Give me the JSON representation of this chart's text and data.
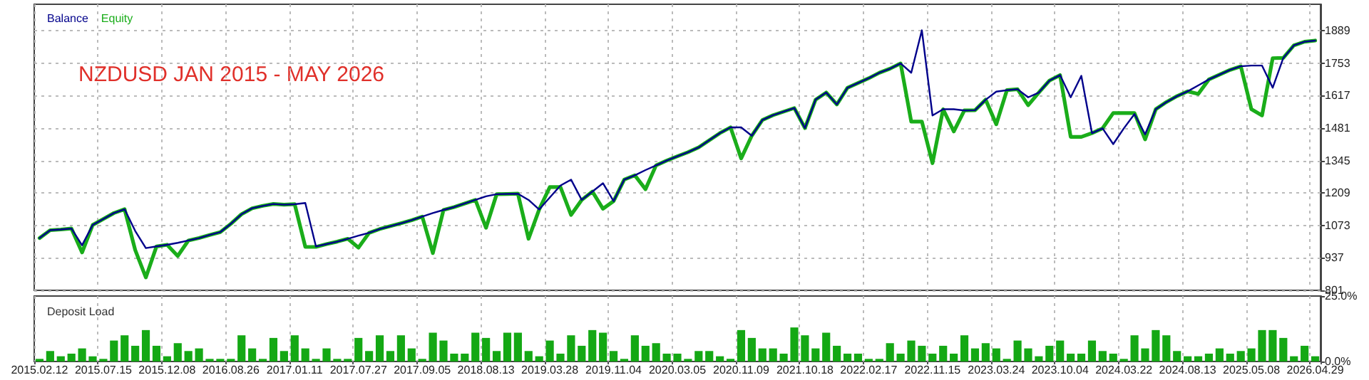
{
  "chart_data": [
    {
      "type": "line",
      "annotations": [
        "NZDUSD JAN 2015 - MAY 2026"
      ],
      "legend": "top left",
      "grid": true,
      "tick_labels": "y",
      "marker": "none",
      "line_style": "solid",
      "categories": [
        "2015.02.12",
        null,
        null,
        null,
        null,
        null,
        "2015.07.15",
        null,
        null,
        null,
        null,
        null,
        "2015.12.08",
        null,
        null,
        null,
        null,
        null,
        "2016.08.26",
        null,
        null,
        null,
        null,
        null,
        "2017.01.11",
        null,
        null,
        null,
        null,
        null,
        "2017.07.27",
        null,
        null,
        null,
        null,
        null,
        "2017.09.05",
        null,
        null,
        null,
        null,
        null,
        "2018.08.13",
        null,
        null,
        null,
        null,
        null,
        "2019.03.28",
        null,
        null,
        null,
        null,
        null,
        "2019.11.04",
        null,
        null,
        null,
        null,
        null,
        "2020.03.05",
        null,
        null,
        null,
        null,
        null,
        "2020.11.09",
        null,
        null,
        null,
        null,
        null,
        "2021.10.18",
        null,
        null,
        null,
        null,
        null,
        "2022.02.17",
        null,
        null,
        null,
        null,
        null,
        "2022.11.15",
        null,
        null,
        null,
        null,
        null,
        "2023.03.24",
        null,
        null,
        null,
        null,
        null,
        "2023.10.04",
        null,
        null,
        null,
        null,
        null,
        "2024.03.22",
        null,
        null,
        null,
        null,
        null,
        "2024.08.13",
        null,
        null,
        null,
        null,
        null,
        "2025.05.08",
        null,
        null,
        null,
        null,
        null,
        "2026.04.29"
      ],
      "ylim": [
        801,
        2000
      ],
      "yticks": [
        801,
        937,
        1073,
        1209,
        1345,
        1481,
        1617,
        1753,
        1889
      ],
      "series": [
        {
          "name": "Balance",
          "color": "#00008b",
          "values": [
            1020,
            1053,
            1056,
            1060,
            990,
            1075,
            1100,
            1125,
            1141,
            1050,
            978,
            985,
            992,
            1000,
            1010,
            1020,
            1033,
            1045,
            1080,
            1120,
            1145,
            1155,
            1163,
            1160,
            1162,
            1167,
            985,
            995,
            1005,
            1017,
            1030,
            1042,
            1058,
            1070,
            1082,
            1095,
            1110,
            1125,
            1138,
            1150,
            1165,
            1180,
            1195,
            1204,
            1205,
            1206,
            1180,
            1140,
            1190,
            1240,
            1265,
            1180,
            1215,
            1250,
            1175,
            1265,
            1283,
            1305,
            1325,
            1345,
            1363,
            1380,
            1400,
            1430,
            1460,
            1484,
            1484,
            1449,
            1515,
            1535,
            1550,
            1565,
            1481,
            1600,
            1630,
            1580,
            1650,
            1670,
            1690,
            1713,
            1730,
            1752,
            1713,
            1891,
            1534,
            1560,
            1560,
            1555,
            1556,
            1600,
            1634,
            1640,
            1644,
            1610,
            1630,
            1680,
            1703,
            1610,
            1700,
            1460,
            1480,
            1414,
            1480,
            1540,
            1455,
            1560,
            1590,
            1615,
            1635,
            1660,
            1685,
            1705,
            1725,
            1740,
            1743,
            1743,
            1650,
            1775,
            1828,
            1843,
            1848
          ]
        },
        {
          "name": "Equity",
          "color": "#1aad1a",
          "values": [
            1020,
            1053,
            1056,
            1060,
            960,
            1075,
            1100,
            1125,
            1141,
            970,
            855,
            985,
            992,
            945,
            1010,
            1020,
            1033,
            1045,
            1080,
            1120,
            1145,
            1155,
            1163,
            1160,
            1162,
            983,
            983,
            995,
            1005,
            1017,
            980,
            1042,
            1058,
            1070,
            1082,
            1095,
            1110,
            957,
            1138,
            1150,
            1165,
            1180,
            1063,
            1204,
            1205,
            1206,
            1017,
            1140,
            1234,
            1234,
            1117,
            1180,
            1215,
            1143,
            1175,
            1265,
            1283,
            1225,
            1325,
            1345,
            1363,
            1380,
            1400,
            1430,
            1460,
            1484,
            1354,
            1449,
            1515,
            1535,
            1550,
            1565,
            1481,
            1600,
            1630,
            1580,
            1650,
            1670,
            1690,
            1713,
            1730,
            1752,
            1508,
            1508,
            1334,
            1560,
            1467,
            1555,
            1556,
            1600,
            1497,
            1640,
            1644,
            1577,
            1630,
            1680,
            1703,
            1444,
            1444,
            1460,
            1480,
            1544,
            1544,
            1544,
            1434,
            1560,
            1590,
            1615,
            1635,
            1624,
            1685,
            1705,
            1725,
            1740,
            1560,
            1534,
            1774,
            1775,
            1828,
            1843,
            1848
          ]
        }
      ]
    },
    {
      "type": "bar",
      "title": "Deposit Load",
      "grid": "x",
      "categories": [
        "2015.02.12",
        null,
        null,
        null,
        null,
        null,
        "2015.07.15",
        null,
        null,
        null,
        null,
        null,
        "2015.12.08",
        null,
        null,
        null,
        null,
        null,
        "2016.08.26",
        null,
        null,
        null,
        null,
        null,
        "2017.01.11",
        null,
        null,
        null,
        null,
        null,
        "2017.07.27",
        null,
        null,
        null,
        null,
        null,
        "2017.09.05",
        null,
        null,
        null,
        null,
        null,
        "2018.08.13",
        null,
        null,
        null,
        null,
        null,
        "2019.03.28",
        null,
        null,
        null,
        null,
        null,
        "2019.11.04",
        null,
        null,
        null,
        null,
        null,
        "2020.03.05",
        null,
        null,
        null,
        null,
        null,
        "2020.11.09",
        null,
        null,
        null,
        null,
        null,
        "2021.10.18",
        null,
        null,
        null,
        null,
        null,
        "2022.02.17",
        null,
        null,
        null,
        null,
        null,
        "2022.11.15",
        null,
        null,
        null,
        null,
        null,
        "2023.03.24",
        null,
        null,
        null,
        null,
        null,
        "2023.10.04",
        null,
        null,
        null,
        null,
        null,
        "2024.03.22",
        null,
        null,
        null,
        null,
        null,
        "2024.08.13",
        null,
        null,
        null,
        null,
        null,
        "2025.05.08",
        null,
        null,
        null,
        null,
        null,
        "2026.04.29"
      ],
      "ylim": [
        0,
        25
      ],
      "yticks": [
        {
          "value": 0,
          "label": "0.0%"
        },
        {
          "value": 25,
          "label": "25.0%"
        }
      ],
      "color": "#14a814",
      "values": [
        1,
        4,
        2,
        3,
        5,
        2,
        1,
        8,
        10,
        6,
        12,
        6,
        2,
        7,
        4,
        5,
        1,
        1,
        1,
        10,
        5,
        1,
        9,
        4,
        10,
        5,
        1,
        5,
        1,
        1,
        9,
        4,
        10,
        4,
        10,
        5,
        1,
        11,
        8,
        3,
        3,
        11,
        9,
        4,
        11,
        11,
        4,
        2,
        8,
        3,
        10,
        6,
        12,
        11,
        4,
        1,
        10,
        6,
        7,
        3,
        3,
        1,
        4,
        4,
        2,
        1,
        12,
        9,
        5,
        5,
        3,
        13,
        10,
        5,
        11,
        6,
        3,
        3,
        1,
        1,
        7,
        3,
        8,
        6,
        3,
        6,
        3,
        10,
        5,
        7,
        5,
        1,
        8,
        5,
        2,
        6,
        8,
        3,
        3,
        8,
        4,
        3,
        1,
        10,
        5,
        12,
        10,
        4,
        2,
        2,
        3,
        5,
        3,
        4,
        5,
        12,
        12,
        9,
        2,
        6,
        2
      ]
    }
  ]
}
